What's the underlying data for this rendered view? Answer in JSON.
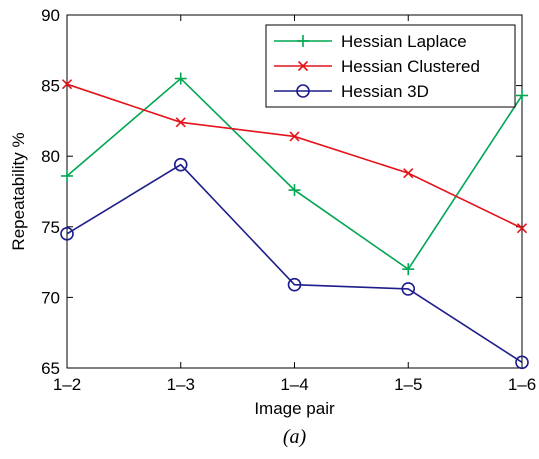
{
  "chart_data": {
    "type": "line",
    "categories": [
      "1–2",
      "1–3",
      "1–4",
      "1–5",
      "1–6"
    ],
    "ylim": [
      65,
      90
    ],
    "yticks": [
      65,
      70,
      75,
      80,
      85,
      90
    ],
    "xlabel": "Image pair",
    "ylabel": "Repeatability %",
    "caption": "(a)",
    "grid": false,
    "legend_position": "top-right",
    "series": [
      {
        "name": "Hessian Laplace",
        "values": [
          78.6,
          85.5,
          77.6,
          72.0,
          84.3
        ],
        "color": "#00a651",
        "marker": "plus"
      },
      {
        "name": "Hessian Clustered",
        "values": [
          85.1,
          82.4,
          81.4,
          78.8,
          74.9
        ],
        "color": "#e4141b",
        "marker": "x"
      },
      {
        "name": "Hessian 3D",
        "values": [
          74.5,
          79.4,
          70.9,
          70.6,
          65.4
        ],
        "color": "#1d1d8c",
        "marker": "circle"
      }
    ]
  }
}
